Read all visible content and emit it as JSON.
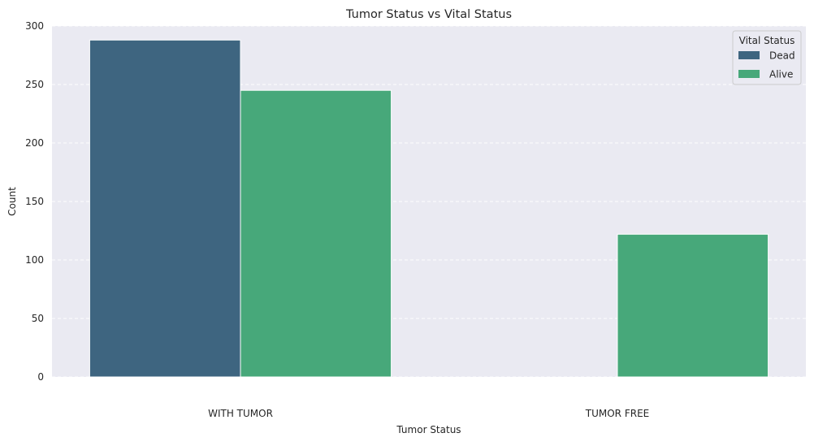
{
  "chart_data": {
    "type": "bar",
    "title": "Tumor Status vs Vital Status",
    "xlabel": "Tumor Status",
    "ylabel": "Count",
    "categories": [
      "WITH TUMOR",
      "TUMOR FREE"
    ],
    "series": [
      {
        "name": "Dead",
        "values": [
          288,
          0
        ],
        "color": "#3e6580"
      },
      {
        "name": "Alive",
        "values": [
          245,
          122
        ],
        "color": "#47a87a"
      }
    ],
    "ylim": [
      0,
      300
    ],
    "yticks": [
      0,
      50,
      100,
      150,
      200,
      250,
      300
    ],
    "grid": true,
    "legend": {
      "title": "Vital Status",
      "placement": "top-right"
    },
    "colors": {
      "background": "#eaeaf2",
      "grid": "#ffffff"
    }
  }
}
